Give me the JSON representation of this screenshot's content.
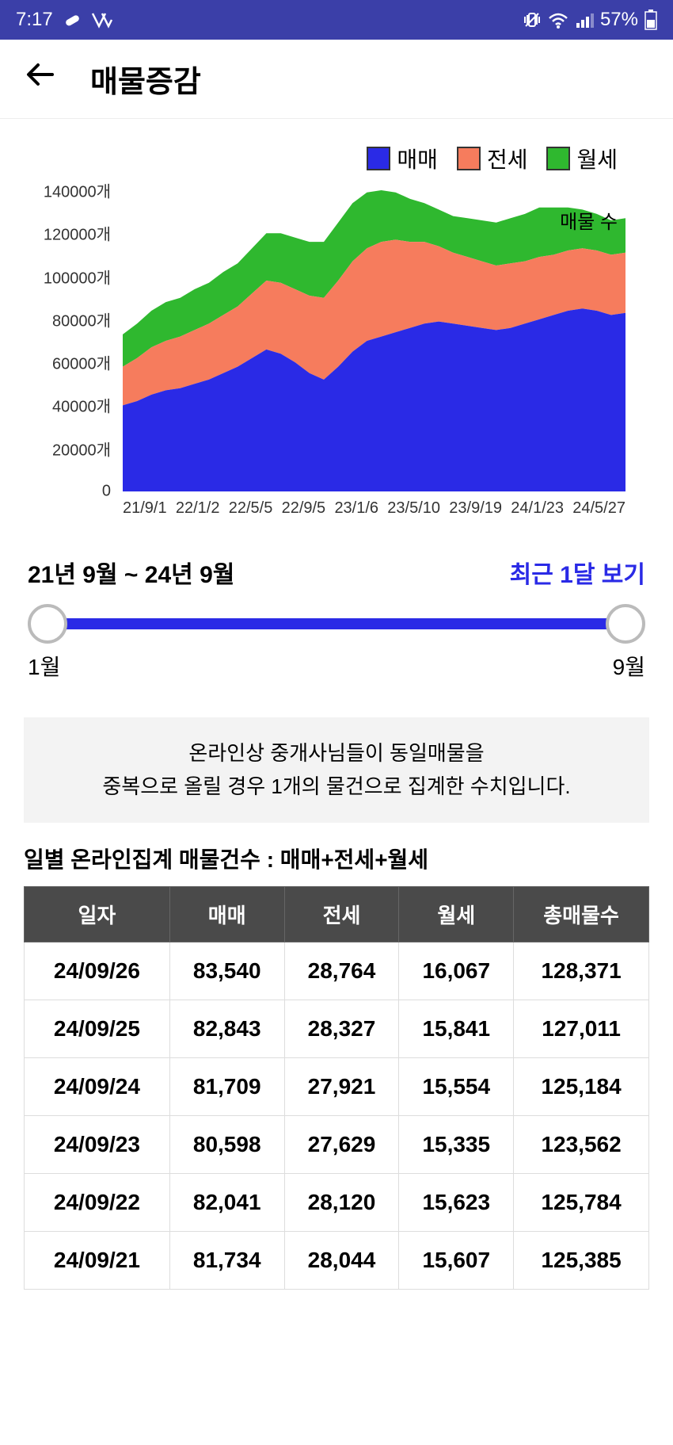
{
  "status": {
    "time": "7:17",
    "battery": "57%"
  },
  "header": {
    "title": "매물증감"
  },
  "chart": {
    "type": "area-stacked",
    "legend": [
      {
        "label": "매매",
        "color": "#2a2ae6"
      },
      {
        "label": "전세",
        "color": "#f67c5d"
      },
      {
        "label": "월세",
        "color": "#2fb82f"
      }
    ],
    "y": {
      "ticks": [
        0,
        20000,
        40000,
        60000,
        80000,
        100000,
        120000,
        140000
      ],
      "tick_labels": [
        "0",
        "20000개",
        "40000개",
        "60000개",
        "80000개",
        "100000개",
        "120000개",
        "140000개"
      ],
      "ylim": [
        0,
        140000
      ]
    },
    "x": {
      "tick_labels": [
        "21/9/1",
        "22/1/2",
        "22/5/5",
        "22/9/5",
        "23/1/6",
        "23/5/10",
        "23/9/19",
        "24/1/23",
        "24/5/27"
      ]
    },
    "annotation": "매물 수",
    "series_maemae": [
      40000,
      42000,
      45000,
      47000,
      48000,
      50000,
      52000,
      55000,
      58000,
      62000,
      66000,
      64000,
      60000,
      55000,
      52000,
      58000,
      65000,
      70000,
      72000,
      74000,
      76000,
      78000,
      79000,
      78000,
      77000,
      76000,
      75000,
      76000,
      78000,
      80000,
      82000,
      84000,
      85000,
      84000,
      82000,
      83000
    ],
    "series_jeonse": [
      18000,
      20000,
      22000,
      23000,
      24000,
      25000,
      26000,
      27000,
      28000,
      30000,
      32000,
      33000,
      34000,
      36000,
      38000,
      40000,
      42000,
      43000,
      44000,
      43000,
      40000,
      38000,
      35000,
      33000,
      32000,
      31000,
      30000,
      30000,
      29000,
      29000,
      28000,
      28000,
      28000,
      28000,
      28000,
      28000
    ],
    "series_wolse": [
      15000,
      16000,
      17000,
      18000,
      18000,
      19000,
      19000,
      20000,
      20000,
      21000,
      22000,
      23000,
      24000,
      25000,
      26000,
      27000,
      27000,
      26000,
      24000,
      22000,
      20000,
      18000,
      17000,
      17000,
      18000,
      19000,
      20000,
      21000,
      22000,
      23000,
      22000,
      20000,
      18000,
      17000,
      16000,
      16000
    ],
    "colors": {
      "maemae": "#2a2ae6",
      "jeonse": "#f67c5d",
      "wolse": "#2fb82f"
    }
  },
  "range": {
    "label": "21년 9월 ~ 24년 9월",
    "link": "최근 1달 보기",
    "min_label": "1월",
    "max_label": "9월",
    "track_color": "#2a2ae6"
  },
  "note": {
    "line1": "온라인상 중개사님들이 동일매물을",
    "line2": "중복으로 올릴 경우 1개의 물건으로 집계한 수치입니다."
  },
  "table": {
    "title": "일별 온라인집계 매물건수 : 매매+전세+월세",
    "columns": [
      "일자",
      "매매",
      "전세",
      "월세",
      "총매물수"
    ],
    "rows": [
      [
        "24/09/26",
        "83,540",
        "28,764",
        "16,067",
        "128,371"
      ],
      [
        "24/09/25",
        "82,843",
        "28,327",
        "15,841",
        "127,011"
      ],
      [
        "24/09/24",
        "81,709",
        "27,921",
        "15,554",
        "125,184"
      ],
      [
        "24/09/23",
        "80,598",
        "27,629",
        "15,335",
        "123,562"
      ],
      [
        "24/09/22",
        "82,041",
        "28,120",
        "15,623",
        "125,784"
      ],
      [
        "24/09/21",
        "81,734",
        "28,044",
        "15,607",
        "125,385"
      ]
    ]
  }
}
